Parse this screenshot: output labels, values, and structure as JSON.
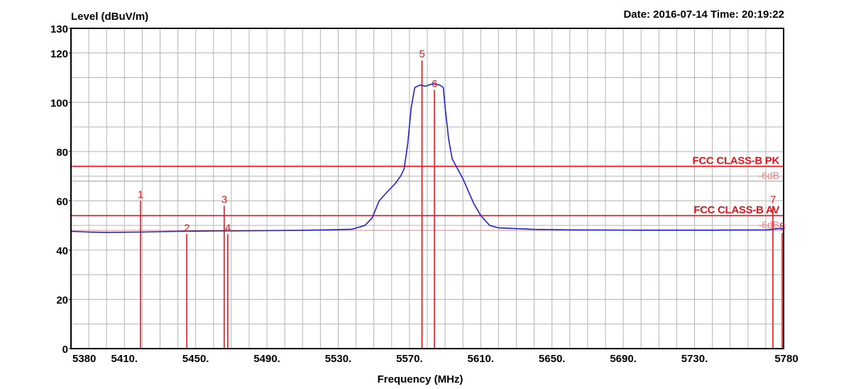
{
  "header": {
    "ylabel": "Level (dBuV/m)",
    "datetime": "Date: 2016-07-14  Time: 20:19:22"
  },
  "colors": {
    "trace": "#1f1fd6",
    "limit": "#e8141a",
    "limit_sub": "#f08080",
    "grid": "#b4b4b4",
    "marker": "#e8141a"
  },
  "chart_data": {
    "type": "line",
    "xlabel": "Frequency (MHz)",
    "ylabel": "Level (dBuV/m)",
    "xlim": [
      5380,
      5780
    ],
    "ylim": [
      0,
      130
    ],
    "x_ticks": [
      {
        "value": 5380,
        "label": "5380"
      },
      {
        "value": 5410,
        "label": "5410."
      },
      {
        "value": 5450,
        "label": "5450."
      },
      {
        "value": 5490,
        "label": "5490."
      },
      {
        "value": 5530,
        "label": "5530."
      },
      {
        "value": 5570,
        "label": "5570."
      },
      {
        "value": 5610,
        "label": "5610."
      },
      {
        "value": 5650,
        "label": "5650."
      },
      {
        "value": 5690,
        "label": "5690."
      },
      {
        "value": 5730,
        "label": "5730."
      },
      {
        "value": 5780,
        "label": "5780"
      }
    ],
    "y_ticks": [
      0,
      20,
      40,
      60,
      80,
      100,
      120,
      130
    ],
    "grid": true,
    "series": [
      {
        "values": [
          [
            5378,
            47.6
          ],
          [
            5390,
            47.3
          ],
          [
            5400,
            47.2
          ],
          [
            5420,
            47.3
          ],
          [
            5440,
            47.6
          ],
          [
            5450,
            47.7
          ],
          [
            5462,
            47.8
          ],
          [
            5470,
            47.8
          ],
          [
            5490,
            47.9
          ],
          [
            5510,
            48.0
          ],
          [
            5530,
            48.3
          ],
          [
            5538,
            48.5
          ],
          [
            5545,
            50
          ],
          [
            5549,
            53
          ],
          [
            5553,
            60
          ],
          [
            5558,
            64
          ],
          [
            5562,
            67
          ],
          [
            5565,
            70
          ],
          [
            5567,
            73
          ],
          [
            5569,
            83
          ],
          [
            5571,
            98
          ],
          [
            5573,
            106
          ],
          [
            5576,
            107
          ],
          [
            5579,
            106.5
          ],
          [
            5583,
            107.5
          ],
          [
            5587,
            107
          ],
          [
            5589,
            106
          ],
          [
            5590,
            98
          ],
          [
            5592,
            85
          ],
          [
            5594,
            77
          ],
          [
            5597,
            73
          ],
          [
            5600,
            69
          ],
          [
            5603,
            64
          ],
          [
            5606,
            59
          ],
          [
            5610,
            54
          ],
          [
            5615,
            50
          ],
          [
            5620,
            49
          ],
          [
            5640,
            48.4
          ],
          [
            5660,
            48.2
          ],
          [
            5700,
            48.1
          ],
          [
            5740,
            48.1
          ],
          [
            5770,
            48.2
          ],
          [
            5780,
            48.8
          ]
        ]
      }
    ],
    "limits": [
      {
        "label": "FCC CLASS-B PK",
        "value": 74,
        "style": "main"
      },
      {
        "label": "-6dB",
        "value": 68,
        "style": "sub"
      },
      {
        "label": "FCC CLASS-B AV",
        "value": 54,
        "style": "main"
      },
      {
        "label": "-6dB",
        "value": 48,
        "style": "sub"
      }
    ],
    "markers": [
      {
        "label": "1",
        "x": 5419,
        "y": 60
      },
      {
        "label": "2",
        "x": 5445,
        "y": 46.5
      },
      {
        "label": "3",
        "x": 5466,
        "y": 58
      },
      {
        "label": "4",
        "x": 5468,
        "y": 46.5
      },
      {
        "label": "5",
        "x": 5577,
        "y": 117
      },
      {
        "label": "6",
        "x": 5584,
        "y": 105
      },
      {
        "label": "7",
        "x": 5774,
        "y": 58
      },
      {
        "label": "8",
        "x": 5780,
        "y": 47
      }
    ]
  }
}
